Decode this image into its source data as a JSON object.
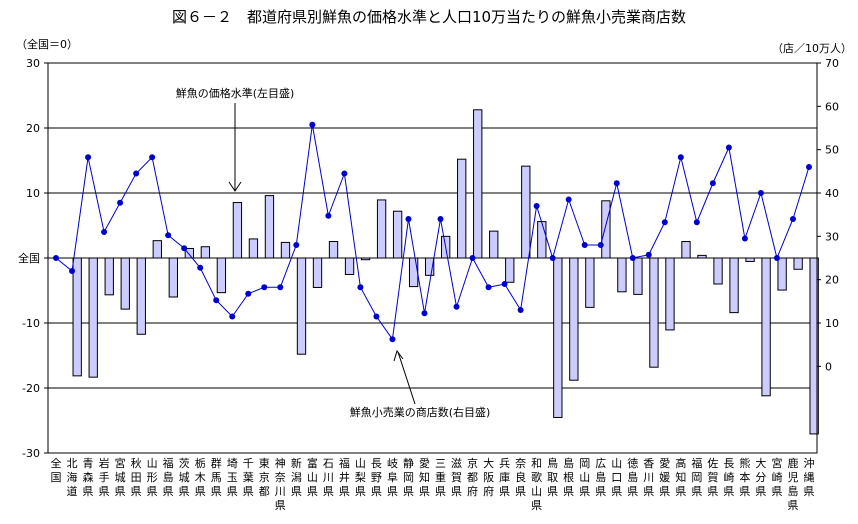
{
  "chart_data": {
    "type": "bar",
    "title": "図６－２　都道府県別鮮魚の価格水準と人口10万当たりの鮮魚小売業商店数",
    "left_axis_unit": "（全国＝0）",
    "right_axis_unit": "（店／10万人）",
    "left_axis": {
      "min": -30,
      "max": 30,
      "ticks": [
        30,
        20,
        10,
        0,
        -10,
        -20,
        -30
      ],
      "zero_label": "全国"
    },
    "right_axis": {
      "min": -20,
      "max": 70,
      "ticks": [
        0,
        10,
        20,
        30,
        40,
        50,
        60,
        70
      ]
    },
    "grid": true,
    "categories": [
      "全国",
      "北海道",
      "青森県",
      "岩手県",
      "宮城県",
      "秋田県",
      "山形県",
      "福島県",
      "茨城県",
      "栃木県",
      "群馬県",
      "埼玉県",
      "千葉県",
      "東京都",
      "神奈川県",
      "新潟県",
      "富山県",
      "石川県",
      "福井県",
      "山梨県",
      "長野県",
      "岐阜県",
      "静岡県",
      "愛知県",
      "三重県",
      "滋賀県",
      "京都府",
      "大阪府",
      "兵庫県",
      "奈良県",
      "和歌山県",
      "鳥取県",
      "島根県",
      "岡山県",
      "広島県",
      "山口県",
      "徳島県",
      "香川県",
      "愛媛県",
      "高知県",
      "福岡県",
      "佐賀県",
      "長崎県",
      "熊本県",
      "大分県",
      "宮崎県",
      "鹿児島県",
      "沖縄県"
    ],
    "series": [
      {
        "name": "鮮魚の価格水準(左目盛)",
        "type": "line",
        "axis": "left",
        "values": [
          0,
          -2,
          15.5,
          4,
          8.5,
          13,
          15.5,
          3.5,
          1.5,
          -1.5,
          -6.5,
          -9,
          -5.5,
          -4.5,
          -4.5,
          2,
          20.5,
          6.5,
          13,
          -4.5,
          -9,
          -12.5,
          6,
          -8.5,
          6,
          -7.5,
          0,
          -4.5,
          -4,
          -8,
          8,
          0,
          9,
          2,
          2,
          11.5,
          0,
          0.5,
          5.5,
          15.5,
          5.5,
          11.5,
          17,
          3,
          10,
          0,
          6,
          14
        ]
      },
      {
        "name": "鮮魚小売業の商店数(右目盛)",
        "type": "bar",
        "axis": "right",
        "values": [
          null,
          -2.2,
          -2.5,
          16.5,
          13.2,
          7.4,
          29.0,
          16.0,
          27.2,
          27.6,
          17.0,
          37.8,
          29.4,
          39.4,
          28.6,
          2.8,
          18.2,
          28.8,
          21.2,
          24.6,
          38.4,
          35.8,
          18.4,
          21.0,
          30.0,
          47.8,
          59.2,
          31.2,
          19.4,
          46.2,
          33.4,
          -11.8,
          -3.2,
          13.6,
          38.2,
          17.2,
          16.6,
          -0.2,
          8.4,
          28.8,
          25.6,
          19.0,
          12.4,
          24.2,
          -6.8,
          17.6,
          22.4,
          -15.6
        ]
      }
    ],
    "annotations": [
      {
        "text": "鮮魚の価格水準(左目盛)",
        "target": "line"
      },
      {
        "text": "鮮魚小売業の商店数(右目盛)",
        "target": "bar"
      }
    ]
  },
  "style": {
    "bar_fill": "#ccccff",
    "bar_stroke": "#000000",
    "line_color": "#0000cc",
    "marker_color": "#0000cc"
  }
}
